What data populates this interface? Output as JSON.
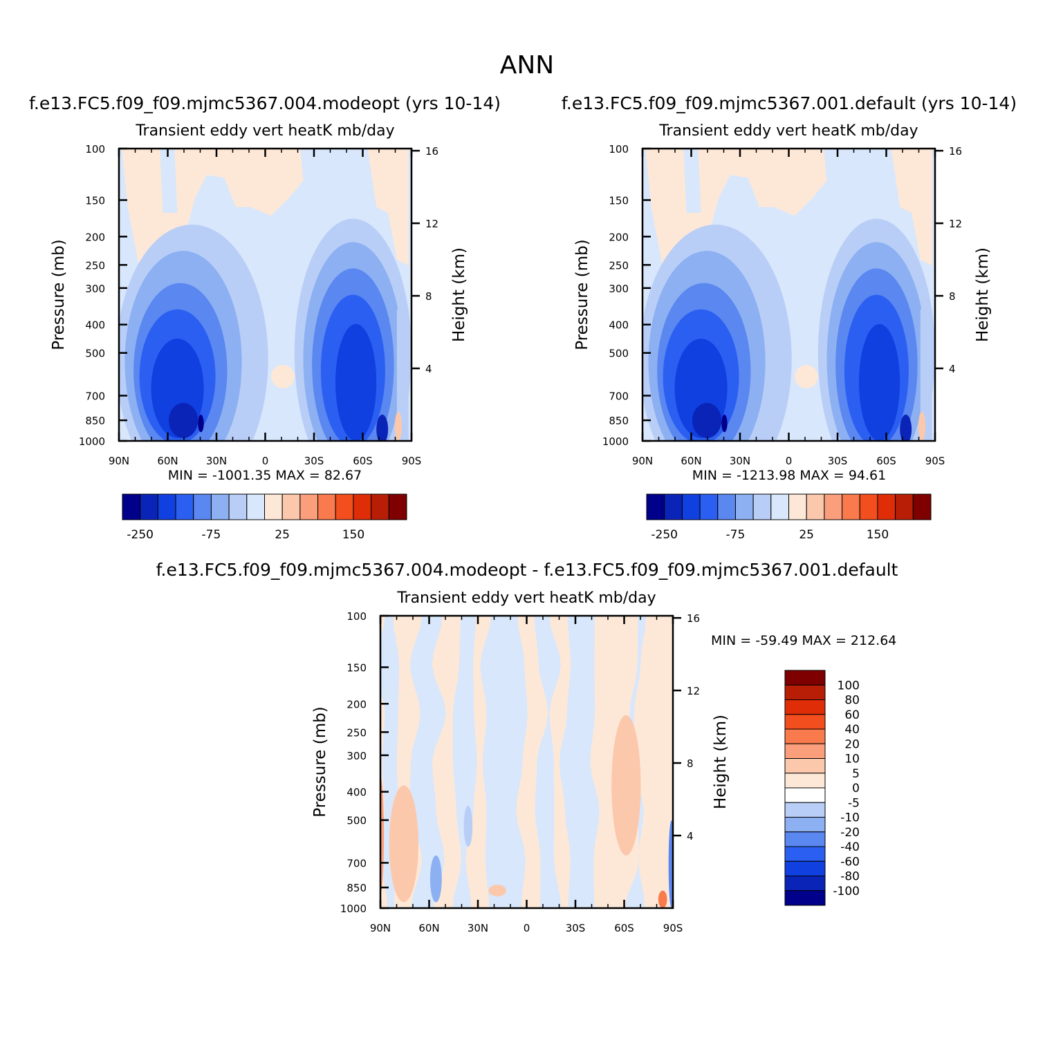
{
  "figure": {
    "title": "ANN",
    "panel_titles": [
      "f.e13.FC5.f09_f09.mjmc5367.004.modeopt (yrs 10-14)",
      "f.e13.FC5.f09_f09.mjmc5367.001.default (yrs 10-14)",
      "f.e13.FC5.f09_f09.mjmc5367.004.modeopt - f.e13.FC5.f09_f09.mjmc5367.001.default"
    ]
  },
  "chart_data": [
    {
      "type": "heatmap",
      "title": "f.e13.FC5.f09_f09.mjmc5367.004.modeopt (yrs 10-14)",
      "subtitle": "Transient eddy vert heatK mb/day",
      "xlabel": "",
      "ylabel": "Pressure (mb)",
      "ylabel_right": "Height (km)",
      "x_tick_labels": [
        "90N",
        "60N",
        "30N",
        "0",
        "30S",
        "60S",
        "90S"
      ],
      "y_tick_labels": [
        "100",
        "150",
        "200",
        "250",
        "300",
        "400",
        "500",
        "700",
        "850",
        "1000"
      ],
      "y2_tick_labels": [
        "16",
        "12",
        "8",
        "4"
      ],
      "y_scale": "log",
      "y_range": [
        1000,
        100
      ],
      "x_range": [
        90,
        -90
      ],
      "min_text": "MIN = -1001.35",
      "max_text": "MAX = 82.67",
      "colorbar_tick_labels": [
        "-250",
        "-75",
        "25",
        "150"
      ],
      "colorbar_colors": [
        "#00008b",
        "#0a24b8",
        "#1040e0",
        "#2b5ff2",
        "#5a87f0",
        "#8cb0f2",
        "#b9cef7",
        "#d8e7fb",
        "#fde8d8",
        "#fcc8ac",
        "#fb9e7c",
        "#f97a4c",
        "#f24e1e",
        "#df2d08",
        "#b81e05",
        "#7f0000"
      ]
    },
    {
      "type": "heatmap",
      "title": "f.e13.FC5.f09_f09.mjmc5367.001.default (yrs 10-14)",
      "subtitle": "Transient eddy vert heatK mb/day",
      "xlabel": "",
      "ylabel": "Pressure (mb)",
      "ylabel_right": "Height (km)",
      "x_tick_labels": [
        "90N",
        "60N",
        "30N",
        "0",
        "30S",
        "60S",
        "90S"
      ],
      "y_tick_labels": [
        "100",
        "150",
        "200",
        "250",
        "300",
        "400",
        "500",
        "700",
        "850",
        "1000"
      ],
      "y2_tick_labels": [
        "16",
        "12",
        "8",
        "4"
      ],
      "y_scale": "log",
      "y_range": [
        1000,
        100
      ],
      "x_range": [
        90,
        -90
      ],
      "min_text": "MIN = -1213.98",
      "max_text": "MAX = 94.61",
      "colorbar_tick_labels": [
        "-250",
        "-75",
        "25",
        "150"
      ],
      "colorbar_colors": [
        "#00008b",
        "#0a24b8",
        "#1040e0",
        "#2b5ff2",
        "#5a87f0",
        "#8cb0f2",
        "#b9cef7",
        "#d8e7fb",
        "#fde8d8",
        "#fcc8ac",
        "#fb9e7c",
        "#f97a4c",
        "#f24e1e",
        "#df2d08",
        "#b81e05",
        "#7f0000"
      ]
    },
    {
      "type": "heatmap",
      "title": "f.e13.FC5.f09_f09.mjmc5367.004.modeopt - f.e13.FC5.f09_f09.mjmc5367.001.default",
      "subtitle": "Transient eddy vert heatK mb/day",
      "xlabel": "",
      "ylabel": "Pressure (mb)",
      "ylabel_right": "Height (km)",
      "x_tick_labels": [
        "90N",
        "60N",
        "30N",
        "0",
        "30S",
        "60S",
        "90S"
      ],
      "y_tick_labels": [
        "100",
        "150",
        "200",
        "250",
        "300",
        "400",
        "500",
        "700",
        "850",
        "1000"
      ],
      "y2_tick_labels": [
        "16",
        "12",
        "8",
        "4"
      ],
      "y_scale": "log",
      "y_range": [
        1000,
        100
      ],
      "x_range": [
        90,
        -90
      ],
      "min_text": "MIN = -59.49",
      "max_text": "MAX = 212.64",
      "colorbar_levels": [
        "100",
        "80",
        "60",
        "40",
        "20",
        "10",
        "5",
        "0",
        "-5",
        "-10",
        "-20",
        "-40",
        "-60",
        "-80",
        "-100"
      ],
      "colorbar_colors": [
        "#7f0000",
        "#b81e05",
        "#df2d08",
        "#f24e1e",
        "#f97a4c",
        "#fb9e7c",
        "#fcc8ac",
        "#fde8d8",
        "#ffffff",
        "#b9cef7",
        "#8cb0f2",
        "#5a87f0",
        "#2b5ff2",
        "#1040e0",
        "#0a24b8",
        "#00008b"
      ]
    }
  ]
}
